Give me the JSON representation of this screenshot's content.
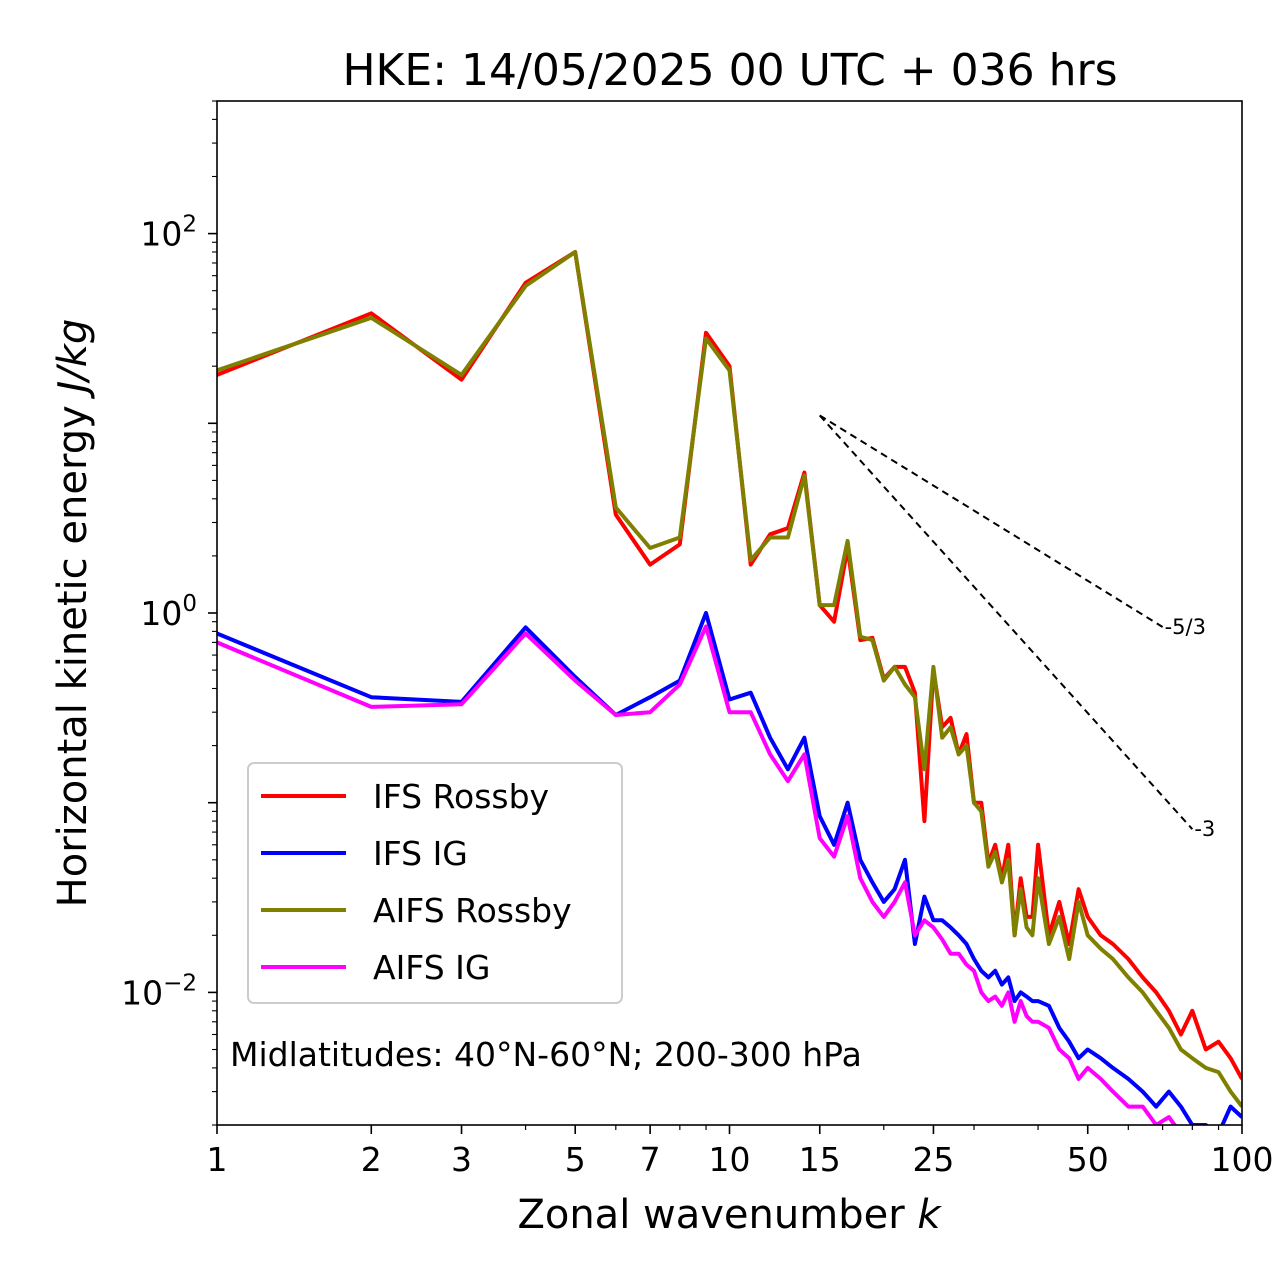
{
  "chart_data": {
    "type": "line",
    "title": "HKE: 14/05/2025 00 UTC + 036 hrs",
    "xlabel": "Zonal wavenumber k",
    "ylabel": "Horizontal kinetic energy J/kg",
    "xscale": "log",
    "yscale": "log",
    "xlim": [
      1,
      100
    ],
    "ylim": [
      0.002,
      500
    ],
    "xticks": [
      {
        "value": 1,
        "label": "1"
      },
      {
        "value": 2,
        "label": "2"
      },
      {
        "value": 3,
        "label": "3"
      },
      {
        "value": 5,
        "label": "5"
      },
      {
        "value": 7,
        "label": "7"
      },
      {
        "value": 10,
        "label": "10"
      },
      {
        "value": 15,
        "label": "15"
      },
      {
        "value": 25,
        "label": "25"
      },
      {
        "value": 50,
        "label": "50"
      },
      {
        "value": 100,
        "label": "100"
      }
    ],
    "yticks": [
      {
        "value": 100,
        "base": "10",
        "exp": "2"
      },
      {
        "value": 1,
        "base": "10",
        "exp": "0"
      },
      {
        "value": 0.01,
        "base": "10",
        "exp": "−2"
      }
    ],
    "annotation": "Midlatitudes: 40°N-60°N; 200-300 hPa",
    "legend": {
      "position": "lower-left"
    },
    "reference_slopes": [
      {
        "label": "-5/3",
        "slope": -1.6667,
        "k_start": 15,
        "k_end": 70,
        "e_start": 11.0
      },
      {
        "label": "-3",
        "slope": -3,
        "k_start": 15,
        "k_end": 80,
        "e_start": 11.0
      }
    ],
    "series": [
      {
        "name": "IFS Rossby",
        "color": "#ff0000",
        "x": [
          1,
          2,
          3,
          4,
          5,
          6,
          7,
          8,
          9,
          10,
          11,
          12,
          13,
          14,
          15,
          16,
          17,
          18,
          19,
          20,
          21,
          22,
          23,
          24,
          25,
          26,
          27,
          28,
          29,
          30,
          31,
          32,
          33,
          34,
          35,
          36,
          37,
          38,
          39,
          40,
          42,
          44,
          46,
          48,
          50,
          53,
          56,
          60,
          64,
          68,
          72,
          76,
          80,
          85,
          90,
          95,
          100
        ],
        "y": [
          18,
          38,
          17,
          55,
          80,
          3.3,
          1.8,
          2.3,
          30,
          20,
          1.8,
          2.6,
          2.8,
          5.5,
          1.1,
          0.9,
          2.2,
          0.72,
          0.74,
          0.45,
          0.52,
          0.52,
          0.38,
          0.08,
          0.5,
          0.25,
          0.28,
          0.18,
          0.23,
          0.1,
          0.1,
          0.048,
          0.06,
          0.04,
          0.06,
          0.02,
          0.04,
          0.025,
          0.025,
          0.06,
          0.02,
          0.03,
          0.018,
          0.035,
          0.025,
          0.02,
          0.018,
          0.015,
          0.012,
          0.01,
          0.008,
          0.006,
          0.008,
          0.005,
          0.0055,
          0.0045,
          0.0035
        ]
      },
      {
        "name": "IFS IG",
        "color": "#0000ff",
        "x": [
          1,
          2,
          3,
          4,
          5,
          6,
          7,
          8,
          9,
          10,
          11,
          12,
          13,
          14,
          15,
          16,
          17,
          18,
          19,
          20,
          21,
          22,
          23,
          24,
          25,
          26,
          27,
          28,
          29,
          30,
          31,
          32,
          33,
          34,
          35,
          36,
          37,
          38,
          39,
          40,
          42,
          44,
          46,
          48,
          50,
          53,
          56,
          60,
          64,
          68,
          72,
          76,
          80,
          85,
          90,
          95,
          100
        ],
        "y": [
          0.78,
          0.36,
          0.34,
          0.84,
          0.46,
          0.29,
          0.36,
          0.44,
          1.0,
          0.35,
          0.38,
          0.22,
          0.15,
          0.22,
          0.085,
          0.06,
          0.1,
          0.05,
          0.038,
          0.03,
          0.035,
          0.05,
          0.018,
          0.032,
          0.024,
          0.024,
          0.022,
          0.02,
          0.018,
          0.015,
          0.013,
          0.012,
          0.013,
          0.011,
          0.012,
          0.009,
          0.01,
          0.0095,
          0.009,
          0.009,
          0.0085,
          0.0065,
          0.0055,
          0.0045,
          0.005,
          0.0045,
          0.004,
          0.0035,
          0.003,
          0.0025,
          0.003,
          0.0025,
          0.002,
          0.002,
          0.0018,
          0.0025,
          0.0022
        ]
      },
      {
        "name": "AIFS Rossby",
        "color": "#808000",
        "x": [
          1,
          2,
          3,
          4,
          5,
          6,
          7,
          8,
          9,
          10,
          11,
          12,
          13,
          14,
          15,
          16,
          17,
          18,
          19,
          20,
          21,
          22,
          23,
          24,
          25,
          26,
          27,
          28,
          29,
          30,
          31,
          32,
          33,
          34,
          35,
          36,
          37,
          38,
          39,
          40,
          42,
          44,
          46,
          48,
          50,
          53,
          56,
          60,
          64,
          68,
          72,
          76,
          80,
          85,
          90,
          95,
          100
        ],
        "y": [
          19,
          36,
          18,
          53,
          80,
          3.6,
          2.2,
          2.5,
          28,
          19,
          1.9,
          2.5,
          2.5,
          5.3,
          1.1,
          1.1,
          2.4,
          0.75,
          0.72,
          0.44,
          0.52,
          0.42,
          0.36,
          0.15,
          0.52,
          0.22,
          0.25,
          0.18,
          0.2,
          0.1,
          0.09,
          0.046,
          0.055,
          0.038,
          0.05,
          0.02,
          0.035,
          0.022,
          0.02,
          0.04,
          0.018,
          0.025,
          0.015,
          0.03,
          0.02,
          0.017,
          0.015,
          0.012,
          0.01,
          0.008,
          0.0065,
          0.005,
          0.0045,
          0.004,
          0.0038,
          0.003,
          0.0025
        ]
      },
      {
        "name": "AIFS IG",
        "color": "#ff00ff",
        "x": [
          1,
          2,
          3,
          4,
          5,
          6,
          7,
          8,
          9,
          10,
          11,
          12,
          13,
          14,
          15,
          16,
          17,
          18,
          19,
          20,
          21,
          22,
          23,
          24,
          25,
          26,
          27,
          28,
          29,
          30,
          31,
          32,
          33,
          34,
          35,
          36,
          37,
          38,
          39,
          40,
          42,
          44,
          46,
          48,
          50,
          53,
          56,
          60,
          64,
          68,
          72,
          76,
          80,
          85,
          90,
          95,
          100
        ],
        "y": [
          0.7,
          0.32,
          0.33,
          0.78,
          0.44,
          0.29,
          0.3,
          0.42,
          0.85,
          0.3,
          0.3,
          0.18,
          0.13,
          0.18,
          0.065,
          0.052,
          0.085,
          0.04,
          0.03,
          0.025,
          0.03,
          0.038,
          0.02,
          0.024,
          0.022,
          0.019,
          0.016,
          0.016,
          0.014,
          0.013,
          0.01,
          0.009,
          0.0095,
          0.0085,
          0.01,
          0.007,
          0.009,
          0.0075,
          0.007,
          0.007,
          0.0065,
          0.005,
          0.0045,
          0.0035,
          0.004,
          0.0035,
          0.003,
          0.0025,
          0.0025,
          0.002,
          0.0022,
          0.0018,
          0.0016,
          0.0014,
          0.0013,
          0.0012,
          0.0011
        ]
      }
    ]
  }
}
